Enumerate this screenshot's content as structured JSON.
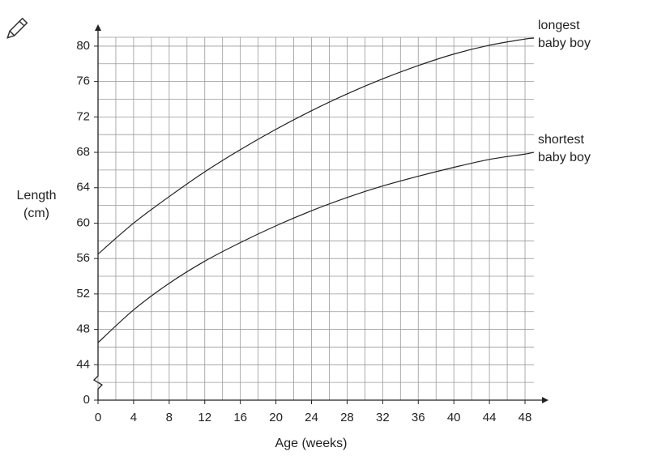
{
  "chart_data": {
    "type": "line",
    "x_label": "Age (weeks)",
    "y_label": "Length (cm)",
    "x": [
      0,
      4,
      8,
      12,
      16,
      20,
      24,
      28,
      32,
      36,
      40,
      44,
      48,
      49
    ],
    "series": [
      {
        "name": "longest baby boy",
        "color": "#222222",
        "values": [
          56.5,
          60,
          63,
          65.8,
          68.3,
          70.6,
          72.7,
          74.6,
          76.3,
          77.8,
          79.1,
          80.1,
          80.8,
          80.9
        ]
      },
      {
        "name": "shortest baby boy",
        "color": "#222222",
        "values": [
          46.5,
          50.2,
          53.2,
          55.7,
          57.8,
          59.7,
          61.4,
          62.9,
          64.2,
          65.3,
          66.3,
          67.2,
          67.8,
          68.0
        ]
      }
    ],
    "xlim": [
      0,
      49
    ],
    "xticks": [
      0,
      4,
      8,
      12,
      16,
      20,
      24,
      28,
      32,
      36,
      40,
      44,
      48
    ],
    "ylim": [
      0,
      81
    ],
    "y_break": [
      0,
      40
    ],
    "yticks": [
      0,
      44,
      48,
      52,
      56,
      60,
      64,
      68,
      72,
      76,
      80
    ],
    "grid": true
  }
}
